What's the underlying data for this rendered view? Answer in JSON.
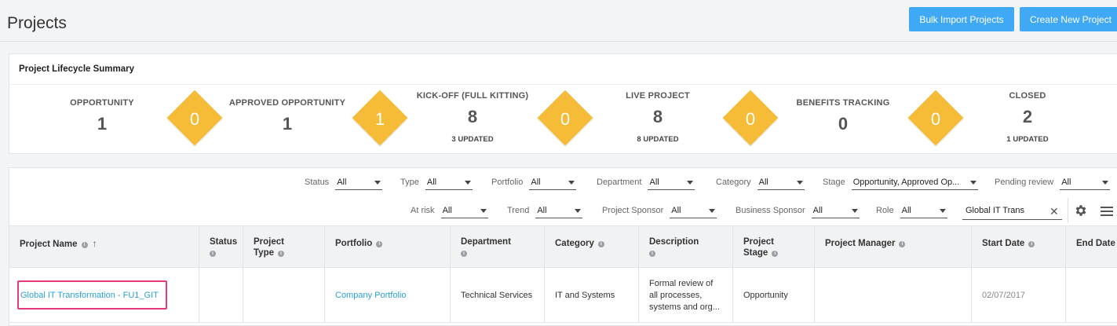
{
  "header": {
    "title": "Projects",
    "bulk_import_label": "Bulk Import Projects",
    "create_label": "Create New Project"
  },
  "summary": {
    "title": "Project Lifecycle Summary",
    "stages": [
      {
        "name": "OPPORTUNITY",
        "count": "1",
        "updated": ""
      },
      {
        "name": "APPROVED OPPORTUNITY",
        "count": "1",
        "updated": ""
      },
      {
        "name": "KICK-OFF (FULL KITTING)",
        "count": "8",
        "updated": "3 UPDATED"
      },
      {
        "name": "LIVE PROJECT",
        "count": "8",
        "updated": "8 UPDATED"
      },
      {
        "name": "BENEFITS TRACKING",
        "count": "0",
        "updated": ""
      },
      {
        "name": "CLOSED",
        "count": "2",
        "updated": "1 UPDATED"
      }
    ],
    "transitions": [
      "0",
      "1",
      "0",
      "0",
      "0"
    ],
    "accent_color": "#f6bc37"
  },
  "filters": {
    "row1": [
      {
        "label": "Status",
        "value": "All"
      },
      {
        "label": "Type",
        "value": "All"
      },
      {
        "label": "Portfolio",
        "value": "All"
      },
      {
        "label": "Department",
        "value": "All"
      },
      {
        "label": "Category",
        "value": "All"
      },
      {
        "label": "Stage",
        "value": "Opportunity, Approved Op..."
      },
      {
        "label": "Pending review",
        "value": "All"
      }
    ],
    "row2": [
      {
        "label": "At risk",
        "value": "All"
      },
      {
        "label": "Trend",
        "value": "All"
      },
      {
        "label": "Project Sponsor",
        "value": "All"
      },
      {
        "label": "Business Sponsor",
        "value": "All"
      },
      {
        "label": "Role",
        "value": "All"
      }
    ],
    "search_value": "Global IT Trans"
  },
  "table": {
    "columns": [
      {
        "l1": "Project Name",
        "l2": "",
        "info": true,
        "sort": true
      },
      {
        "l1": "Status",
        "l2": "",
        "info": false,
        "info2": true
      },
      {
        "l1": "Project",
        "l2": "Type",
        "info": true
      },
      {
        "l1": "Portfolio",
        "l2": "",
        "info": true
      },
      {
        "l1": "Department",
        "l2": "",
        "info2": true
      },
      {
        "l1": "Category",
        "l2": "",
        "info": true
      },
      {
        "l1": "Description",
        "l2": "",
        "info2": true
      },
      {
        "l1": "Project",
        "l2": "Stage",
        "info": true
      },
      {
        "l1": "Project Manager",
        "l2": "",
        "info": true
      },
      {
        "l1": "Start Date",
        "l2": "",
        "info": true
      },
      {
        "l1": "End Date",
        "l2": ""
      }
    ],
    "rows": [
      {
        "project_name": "Global IT Transformation - FU1_GIT",
        "status": "",
        "project_type": "",
        "portfolio": "Company Portfolio",
        "department": "Technical Services",
        "category": "IT and Systems",
        "description_lines": [
          "Formal review of",
          "all processes,",
          "systems and org..."
        ],
        "project_stage": "Opportunity",
        "project_manager": "",
        "start_date": "02/07/2017",
        "end_date": ""
      }
    ]
  }
}
